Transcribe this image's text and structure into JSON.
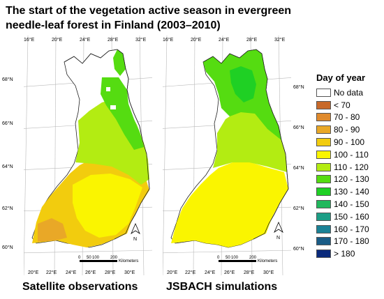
{
  "title": "The start of the vegetation active season in evergreen needle-leaf forest in Finland (2003–2010)",
  "maps": [
    {
      "caption": "Satellite observations",
      "top_lon_labels": [
        "16°E",
        "20°E",
        "24°E",
        "28°E",
        "32°E"
      ],
      "bottom_lon_labels": [
        "20°E",
        "22°E",
        "24°E",
        "26°E",
        "28°E",
        "30°E"
      ],
      "lat_labels": [
        "68°N",
        "66°N",
        "64°N",
        "62°N",
        "60°N"
      ]
    },
    {
      "caption": "JSBACH simulations",
      "top_lon_labels": [
        "16°E",
        "20°E",
        "24°E",
        "28°E",
        "32°E"
      ],
      "bottom_lon_labels": [
        "20°E",
        "22°E",
        "24°E",
        "26°E",
        "28°E",
        "30°E"
      ],
      "lat_labels": [
        "68°N",
        "66°N",
        "64°N",
        "62°N",
        "60°N"
      ]
    }
  ],
  "scale_bar": {
    "ticks": [
      "0",
      "50",
      "100",
      "200"
    ],
    "unit": "Kilometers"
  },
  "north_arrow": "N",
  "legend": {
    "title": "Day of year",
    "items": [
      {
        "label": "No data",
        "color": "#ffffff"
      },
      {
        "label": "< 70",
        "color": "#c8692a"
      },
      {
        "label": "70 - 80",
        "color": "#e08a2c"
      },
      {
        "label": "80 - 90",
        "color": "#e9a827"
      },
      {
        "label": "90 - 100",
        "color": "#f2cc0e"
      },
      {
        "label": "100 - 110",
        "color": "#faf500"
      },
      {
        "label": "110 - 120",
        "color": "#b3ec12"
      },
      {
        "label": "120 - 130",
        "color": "#55dc11"
      },
      {
        "label": "130 - 140",
        "color": "#1fd024"
      },
      {
        "label": "140 - 150",
        "color": "#20b85c"
      },
      {
        "label": "150 - 160",
        "color": "#1c9e86"
      },
      {
        "label": "160 - 170",
        "color": "#1b8296"
      },
      {
        "label": "170 - 180",
        "color": "#1a5c86"
      },
      {
        "label": "> 180",
        "color": "#0a2a7c"
      }
    ]
  }
}
